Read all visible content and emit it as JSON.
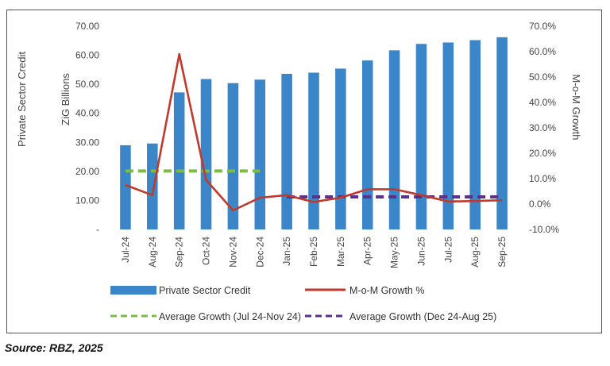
{
  "chart_data": {
    "type": "bar",
    "categories": [
      "Jul-24",
      "Aug-24",
      "Sep-24",
      "Oct-24",
      "Nov-24",
      "Dec-24",
      "Jan-25",
      "Feb-25",
      "Mar-25",
      "Apr-25",
      "May-25",
      "Jun-25",
      "Jul-25",
      "Aug-25",
      "Sep-25"
    ],
    "y_left": {
      "label_line1": "Private Sector Credit",
      "label_line2": "ZiG Billions",
      "range": [
        0,
        70
      ],
      "ticks": [
        "-",
        "10.00",
        "20.00",
        "30.00",
        "40.00",
        "50.00",
        "60.00",
        "70.00"
      ]
    },
    "y_right": {
      "label": "M-o-M Growth",
      "range": [
        -10,
        70
      ],
      "ticks": [
        "-10.0%",
        "0.0%",
        "10.0%",
        "20.0%",
        "30.0%",
        "40.0%",
        "50.0%",
        "60.0%",
        "70.0%"
      ]
    },
    "series": [
      {
        "name": "Private Sector Credit",
        "kind": "bar",
        "axis": "left",
        "color": "#3b86c8",
        "values": [
          29.0,
          29.6,
          47.2,
          51.8,
          50.4,
          51.6,
          53.6,
          54.0,
          55.4,
          58.2,
          61.7,
          63.9,
          64.4,
          65.2,
          66.2
        ]
      },
      {
        "name": "M-o-M Growth %",
        "kind": "line",
        "axis": "right",
        "color": "#c0392b",
        "values": [
          7.5,
          3.5,
          59.0,
          9.5,
          -2.5,
          2.5,
          3.5,
          0.8,
          2.5,
          5.8,
          5.8,
          3.5,
          1.0,
          1.2,
          1.5
        ]
      },
      {
        "name": "Average Growth (Jul 24-Nov 24)",
        "kind": "dashed",
        "axis": "right",
        "color": "#7dbb42",
        "from": "Jul-24",
        "to": "Dec-24",
        "value": 13.0
      },
      {
        "name": "Average Growth (Dec 24-Aug 25)",
        "kind": "dashed",
        "axis": "right",
        "color": "#5b2f8a",
        "from": "Jan-25",
        "to": "Sep-25",
        "value": 2.8
      }
    ],
    "legend_position": "bottom",
    "grid": false
  },
  "source": "Source: RBZ, 2025"
}
